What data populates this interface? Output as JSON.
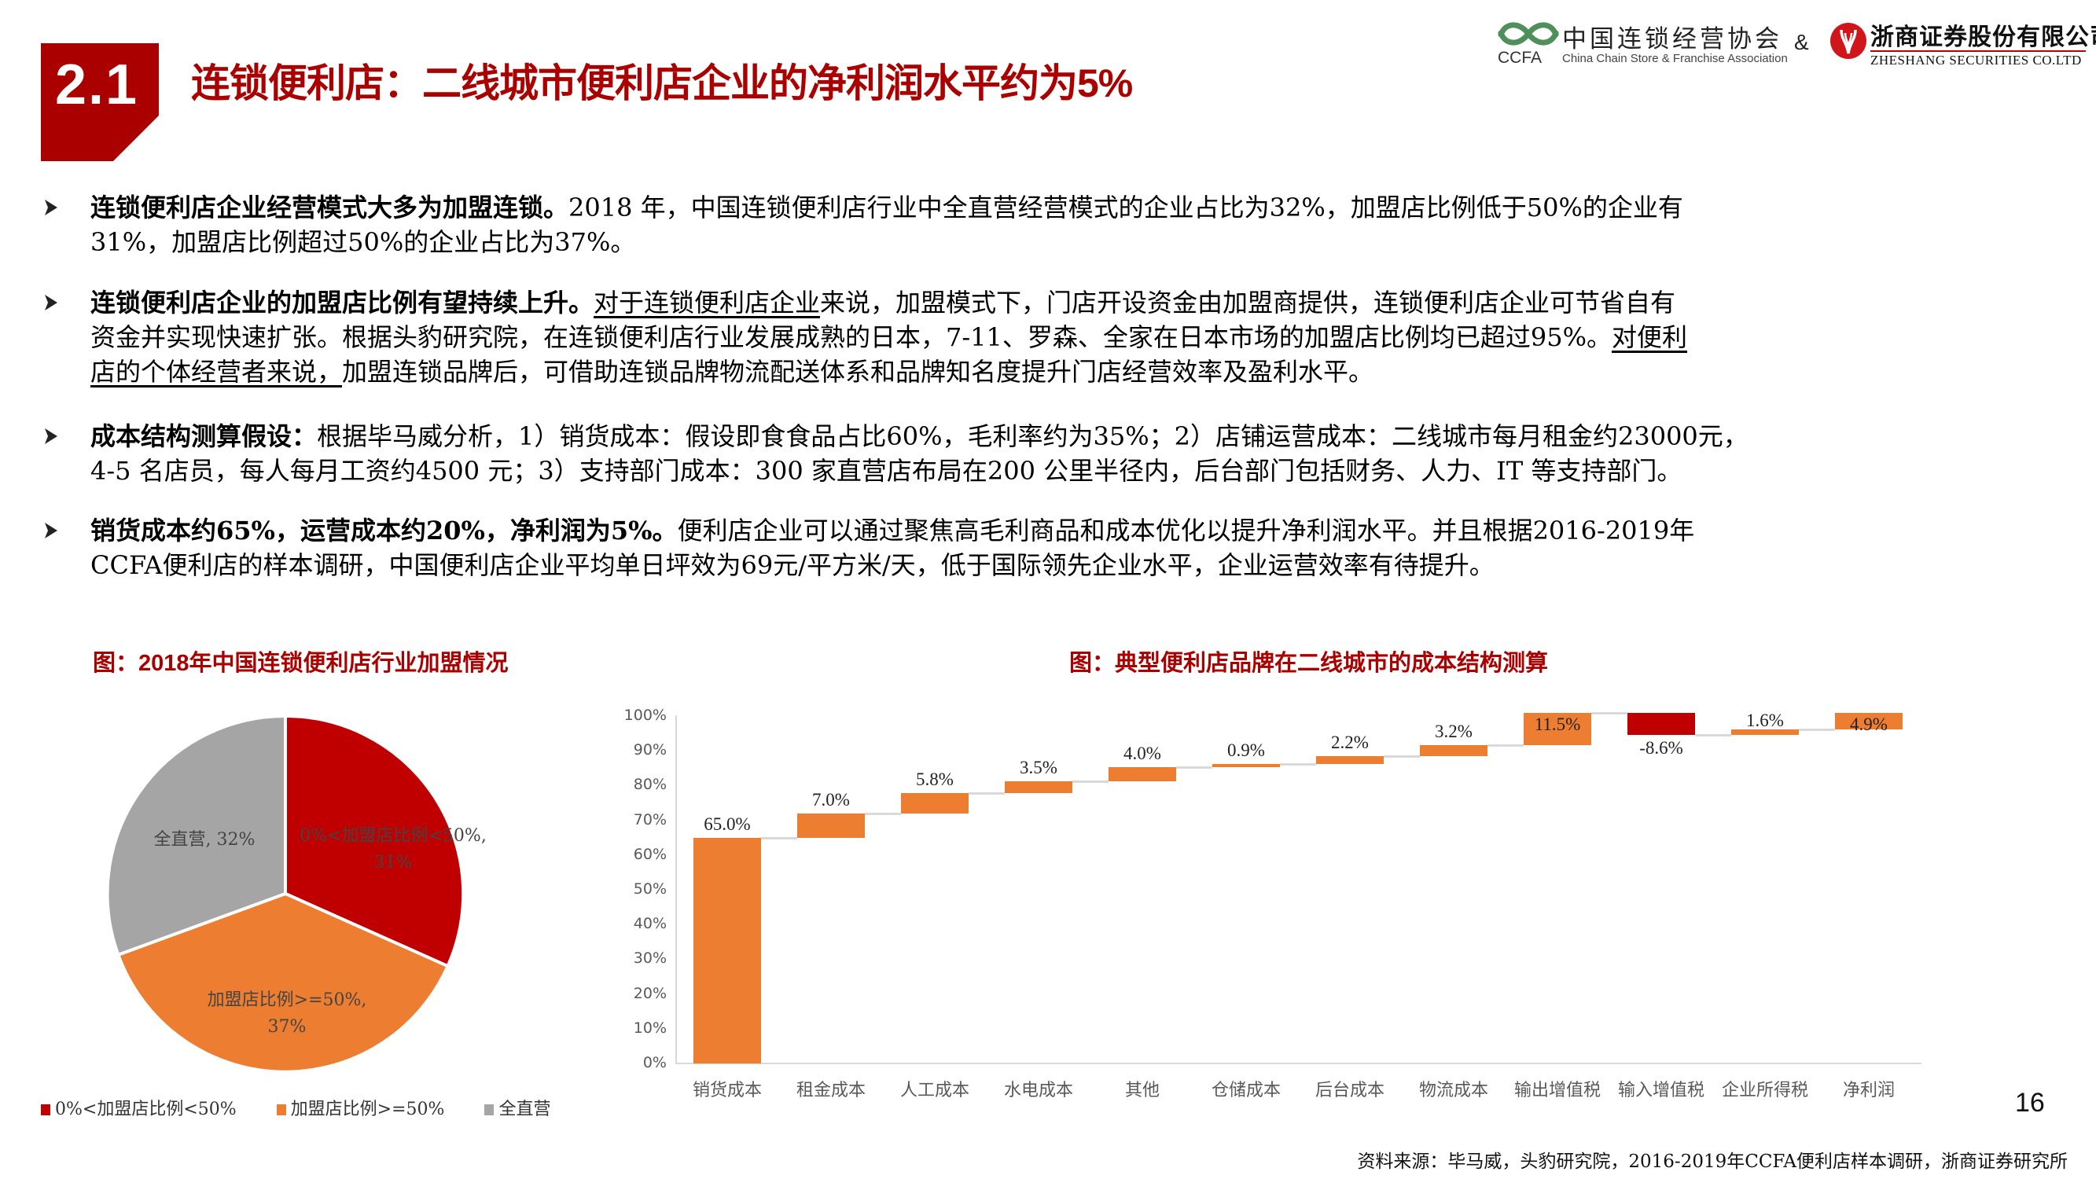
{
  "header": {
    "section_number": "2.1",
    "title": "连锁便利店：二线城市便利店企业的净利润水平约为5%",
    "logos": {
      "ccfa": {
        "abbr": "CCFA",
        "name_cn": "中国连锁经营协会",
        "name_en": "China Chain Store & Franchise Association"
      },
      "ampersand": "&",
      "zheshang": {
        "name_cn": "浙商证券股份有限公司",
        "name_en": "ZHESHANG SECURITIES CO.LTD"
      }
    }
  },
  "bullets": [
    {
      "lead": "连锁便利店企业经营模式大多为加盟连锁。",
      "lines": [
        "2018 年，中国连锁便利店行业中全直营经营模式的企业占比为32%，加盟店比例低于50%的企业有",
        "31%，加盟店比例超过50%的企业占比为37%。"
      ]
    },
    {
      "lead": "连锁便利店企业的加盟店比例有望持续上升。",
      "underline_1": "对于连锁便利店企业",
      "line1_rest": "来说，加盟模式下，门店开设资金由加盟商提供，连锁便利店企业可节省自有",
      "line2_main": "资金并实现快速扩张。根据头豹研究院，在连锁便利店行业发展成熟的日本，7-11、罗森、全家在日本市场的加盟店比例均已超过95%。",
      "underline_2a": "对便利",
      "underline_2b": "店的个体经营者来说，",
      "line3_rest": "加盟连锁品牌后，可借助连锁品牌物流配送体系和品牌知名度提升门店经营效率及盈利水平。"
    },
    {
      "lead": "成本结构测算假设：",
      "lines": [
        "根据毕马威分析，1）销货成本：假设即食食品占比60%，毛利率约为35%；2）店铺运营成本：二线城市每月租金约23000元，",
        "4-5 名店员，每人每月工资约4500 元；3）支持部门成本：300 家直营店布局在200 公里半径内，后台部门包括财务、人力、IT 等支持部门。"
      ]
    },
    {
      "lead": "销货成本约65%，运营成本约20%，净利润为5%。",
      "lines": [
        "便利店企业可以通过聚焦高毛利商品和成本优化以提升净利润水平。并且根据2016-2019年",
        "CCFA便利店的样本调研，中国便利店企业平均单日坪效为69元/平方米/天，低于国际领先企业水平，企业运营效率有待提升。"
      ]
    }
  ],
  "colors": {
    "brand_red": "#AA0000",
    "red": "#C00000",
    "orange": "#ED7D31",
    "gray": "#A5A5A5",
    "connector": "#D9D9D9"
  },
  "chart_data": [
    {
      "type": "pie",
      "title": "图：2018年中国连锁便利店行业加盟情况",
      "categories": [
        "0%<加盟店比例<50%",
        "加盟店比例>=50%",
        "全直营"
      ],
      "values": [
        31,
        37,
        32
      ],
      "unit": "%",
      "data_labels": [
        "0%<加盟店比例<50%,",
        "31%",
        "加盟店比例>=50%,",
        "37%",
        "全直营, 32%"
      ],
      "legend": [
        "0%<加盟店比例<50%",
        "加盟店比例>=50%",
        "全直营"
      ],
      "legend_position": "bottom",
      "colors": [
        "#C00000",
        "#ED7D31",
        "#A5A5A5"
      ]
    },
    {
      "type": "bar",
      "subtype": "waterfall",
      "title": "图：典型便利店品牌在二线城市的成本结构测算",
      "categories": [
        "销货成本",
        "租金成本",
        "人工成本",
        "水电成本",
        "其他",
        "仓储成本",
        "后台成本",
        "物流成本",
        "输出增值税",
        "输入增值税",
        "企业所得税",
        "净利润"
      ],
      "values": [
        65.0,
        7.0,
        5.8,
        3.5,
        4.0,
        0.9,
        2.2,
        3.2,
        11.5,
        -8.6,
        1.6,
        4.9
      ],
      "labels": [
        "65.0%",
        "7.0%",
        "5.8%",
        "3.5%",
        "4.0%",
        "0.9%",
        "2.2%",
        "3.2%",
        "11.5%",
        "-8.6%",
        "1.6%",
        "4.9%"
      ],
      "yticks": [
        "0%",
        "10%",
        "20%",
        "30%",
        "40%",
        "50%",
        "60%",
        "70%",
        "80%",
        "90%",
        "100%"
      ],
      "ylim": [
        0,
        100
      ],
      "xlabel": "",
      "ylabel": "",
      "grid": false,
      "legend": false
    }
  ],
  "footer": {
    "source": "资料来源：毕马威，头豹研究院，2016-2019年CCFA便利店样本调研，浙商证券研究所",
    "page_number": "16"
  }
}
